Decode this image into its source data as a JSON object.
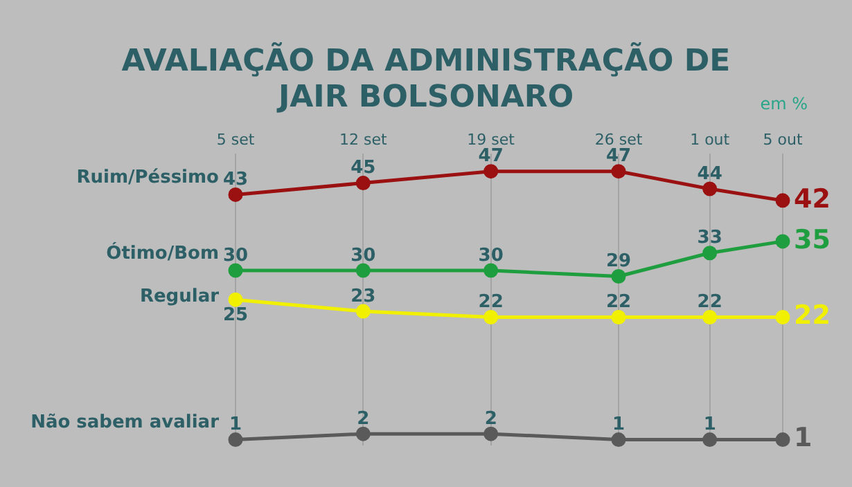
{
  "chart_data": {
    "type": "line",
    "title": "AVALIAÇÃO DA ADMINISTRAÇÃO DE JAIR BOLSONARO",
    "annotations": [
      "em %"
    ],
    "x": [
      "--09-05",
      "--09-12",
      "--09-19",
      "--09-26",
      "--10-01",
      "--10-05"
    ],
    "xlim": [
      "--09-05",
      "--10-05"
    ],
    "xticks": [
      {
        "value": "--09-05",
        "label": "5 set"
      },
      {
        "value": "--09-12",
        "label": "12 set"
      },
      {
        "value": "--09-19",
        "label": "19 set"
      },
      {
        "value": "--09-26",
        "label": "26 set"
      },
      {
        "value": "--10-01",
        "label": "1 out"
      },
      {
        "value": "--10-05",
        "label": "5 out"
      }
    ],
    "ylim": [
      0,
      50
    ],
    "tick_labels": "x",
    "grid": "x",
    "legend": false,
    "marker": "circle",
    "line_style": "solid",
    "data_labels": true,
    "series": [
      {
        "name": "Ruim/Péssimo",
        "color": "#9b1010",
        "values": [
          43,
          45,
          47,
          47,
          44,
          42
        ]
      },
      {
        "name": "Ótimo/Bom",
        "color": "#1f9e3f",
        "values": [
          30,
          30,
          30,
          29,
          33,
          35
        ]
      },
      {
        "name": "Regular",
        "color": "#f0f000",
        "values": [
          25,
          23,
          22,
          22,
          22,
          22
        ]
      },
      {
        "name": "Não sabem avaliar",
        "color": "#5a5a5a",
        "values": [
          1,
          2,
          2,
          1,
          1,
          1
        ]
      }
    ]
  }
}
